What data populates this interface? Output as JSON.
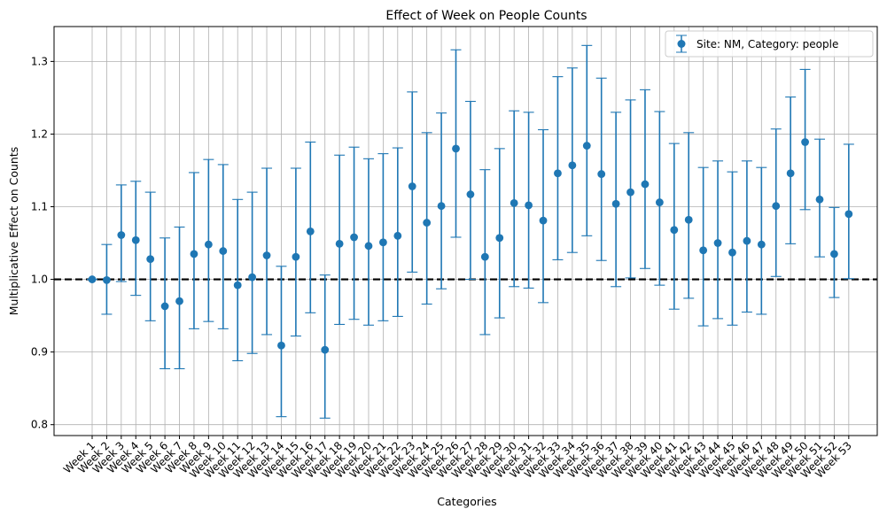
{
  "chart_data": {
    "type": "scatter",
    "title": "Effect of Week on People Counts",
    "xlabel": "Categories",
    "ylabel": "Multiplicative Effect on Counts",
    "ylim": [
      0.785,
      1.348
    ],
    "yticks": [
      0.8,
      0.9,
      1.0,
      1.1,
      1.2,
      1.3
    ],
    "ytick_labels": [
      "0.8",
      "0.9",
      "1.0",
      "1.1",
      "1.2",
      "1.3"
    ],
    "grid": true,
    "legend_position": "top-right",
    "reference_line": 1.0,
    "categories": [
      "Week 1",
      "Week 2",
      "Week 3",
      "Week 4",
      "Week 5",
      "Week 6",
      "Week 7",
      "Week 8",
      "Week 9",
      "Week 10",
      "Week 11",
      "Week 12",
      "Week 13",
      "Week 14",
      "Week 15",
      "Week 16",
      "Week 17",
      "Week 18",
      "Week 19",
      "Week 20",
      "Week 21",
      "Week 22",
      "Week 23",
      "Week 24",
      "Week 25",
      "Week 26",
      "Week 27",
      "Week 28",
      "Week 29",
      "Week 30",
      "Week 31",
      "Week 32",
      "Week 33",
      "Week 34",
      "Week 35",
      "Week 36",
      "Week 37",
      "Week 38",
      "Week 39",
      "Week 40",
      "Week 41",
      "Week 42",
      "Week 43",
      "Week 44",
      "Week 45",
      "Week 46",
      "Week 47",
      "Week 48",
      "Week 49",
      "Week 50",
      "Week 51",
      "Week 52",
      "Week 53"
    ],
    "series": [
      {
        "name": "Site: NM, Category: people",
        "color": "#1f77b4",
        "values": [
          1.0,
          0.999,
          1.061,
          1.054,
          1.028,
          0.963,
          0.97,
          1.035,
          1.048,
          1.039,
          0.992,
          1.003,
          1.033,
          0.909,
          1.031,
          1.066,
          0.903,
          1.049,
          1.058,
          1.046,
          1.051,
          1.06,
          1.128,
          1.078,
          1.101,
          1.18,
          1.117,
          1.031,
          1.057,
          1.105,
          1.102,
          1.081,
          1.146,
          1.157,
          1.184,
          1.145,
          1.104,
          1.12,
          1.131,
          1.106,
          1.068,
          1.082,
          1.04,
          1.05,
          1.037,
          1.053,
          1.048,
          1.101,
          1.146,
          1.189,
          1.11,
          1.035,
          1.09
        ],
        "lower": [
          1.0,
          0.952,
          0.997,
          0.978,
          0.943,
          0.877,
          0.877,
          0.932,
          0.942,
          0.932,
          0.888,
          0.898,
          0.924,
          0.811,
          0.922,
          0.954,
          0.809,
          0.938,
          0.945,
          0.937,
          0.943,
          0.949,
          1.01,
          0.966,
          0.987,
          1.058,
          1.0,
          0.924,
          0.947,
          0.99,
          0.988,
          0.968,
          1.027,
          1.037,
          1.06,
          1.026,
          0.99,
          1.002,
          1.015,
          0.992,
          0.959,
          0.974,
          0.936,
          0.946,
          0.937,
          0.955,
          0.952,
          1.004,
          1.049,
          1.096,
          1.031,
          0.975,
          1.001
        ],
        "upper": [
          1.0,
          1.048,
          1.13,
          1.135,
          1.12,
          1.057,
          1.072,
          1.147,
          1.165,
          1.158,
          1.11,
          1.12,
          1.153,
          1.018,
          1.153,
          1.189,
          1.006,
          1.171,
          1.182,
          1.166,
          1.173,
          1.181,
          1.258,
          1.202,
          1.229,
          1.316,
          1.245,
          1.151,
          1.18,
          1.232,
          1.23,
          1.206,
          1.279,
          1.291,
          1.322,
          1.277,
          1.23,
          1.247,
          1.261,
          1.231,
          1.187,
          1.202,
          1.154,
          1.163,
          1.148,
          1.163,
          1.154,
          1.207,
          1.251,
          1.289,
          1.193,
          1.099,
          1.186
        ]
      }
    ]
  }
}
